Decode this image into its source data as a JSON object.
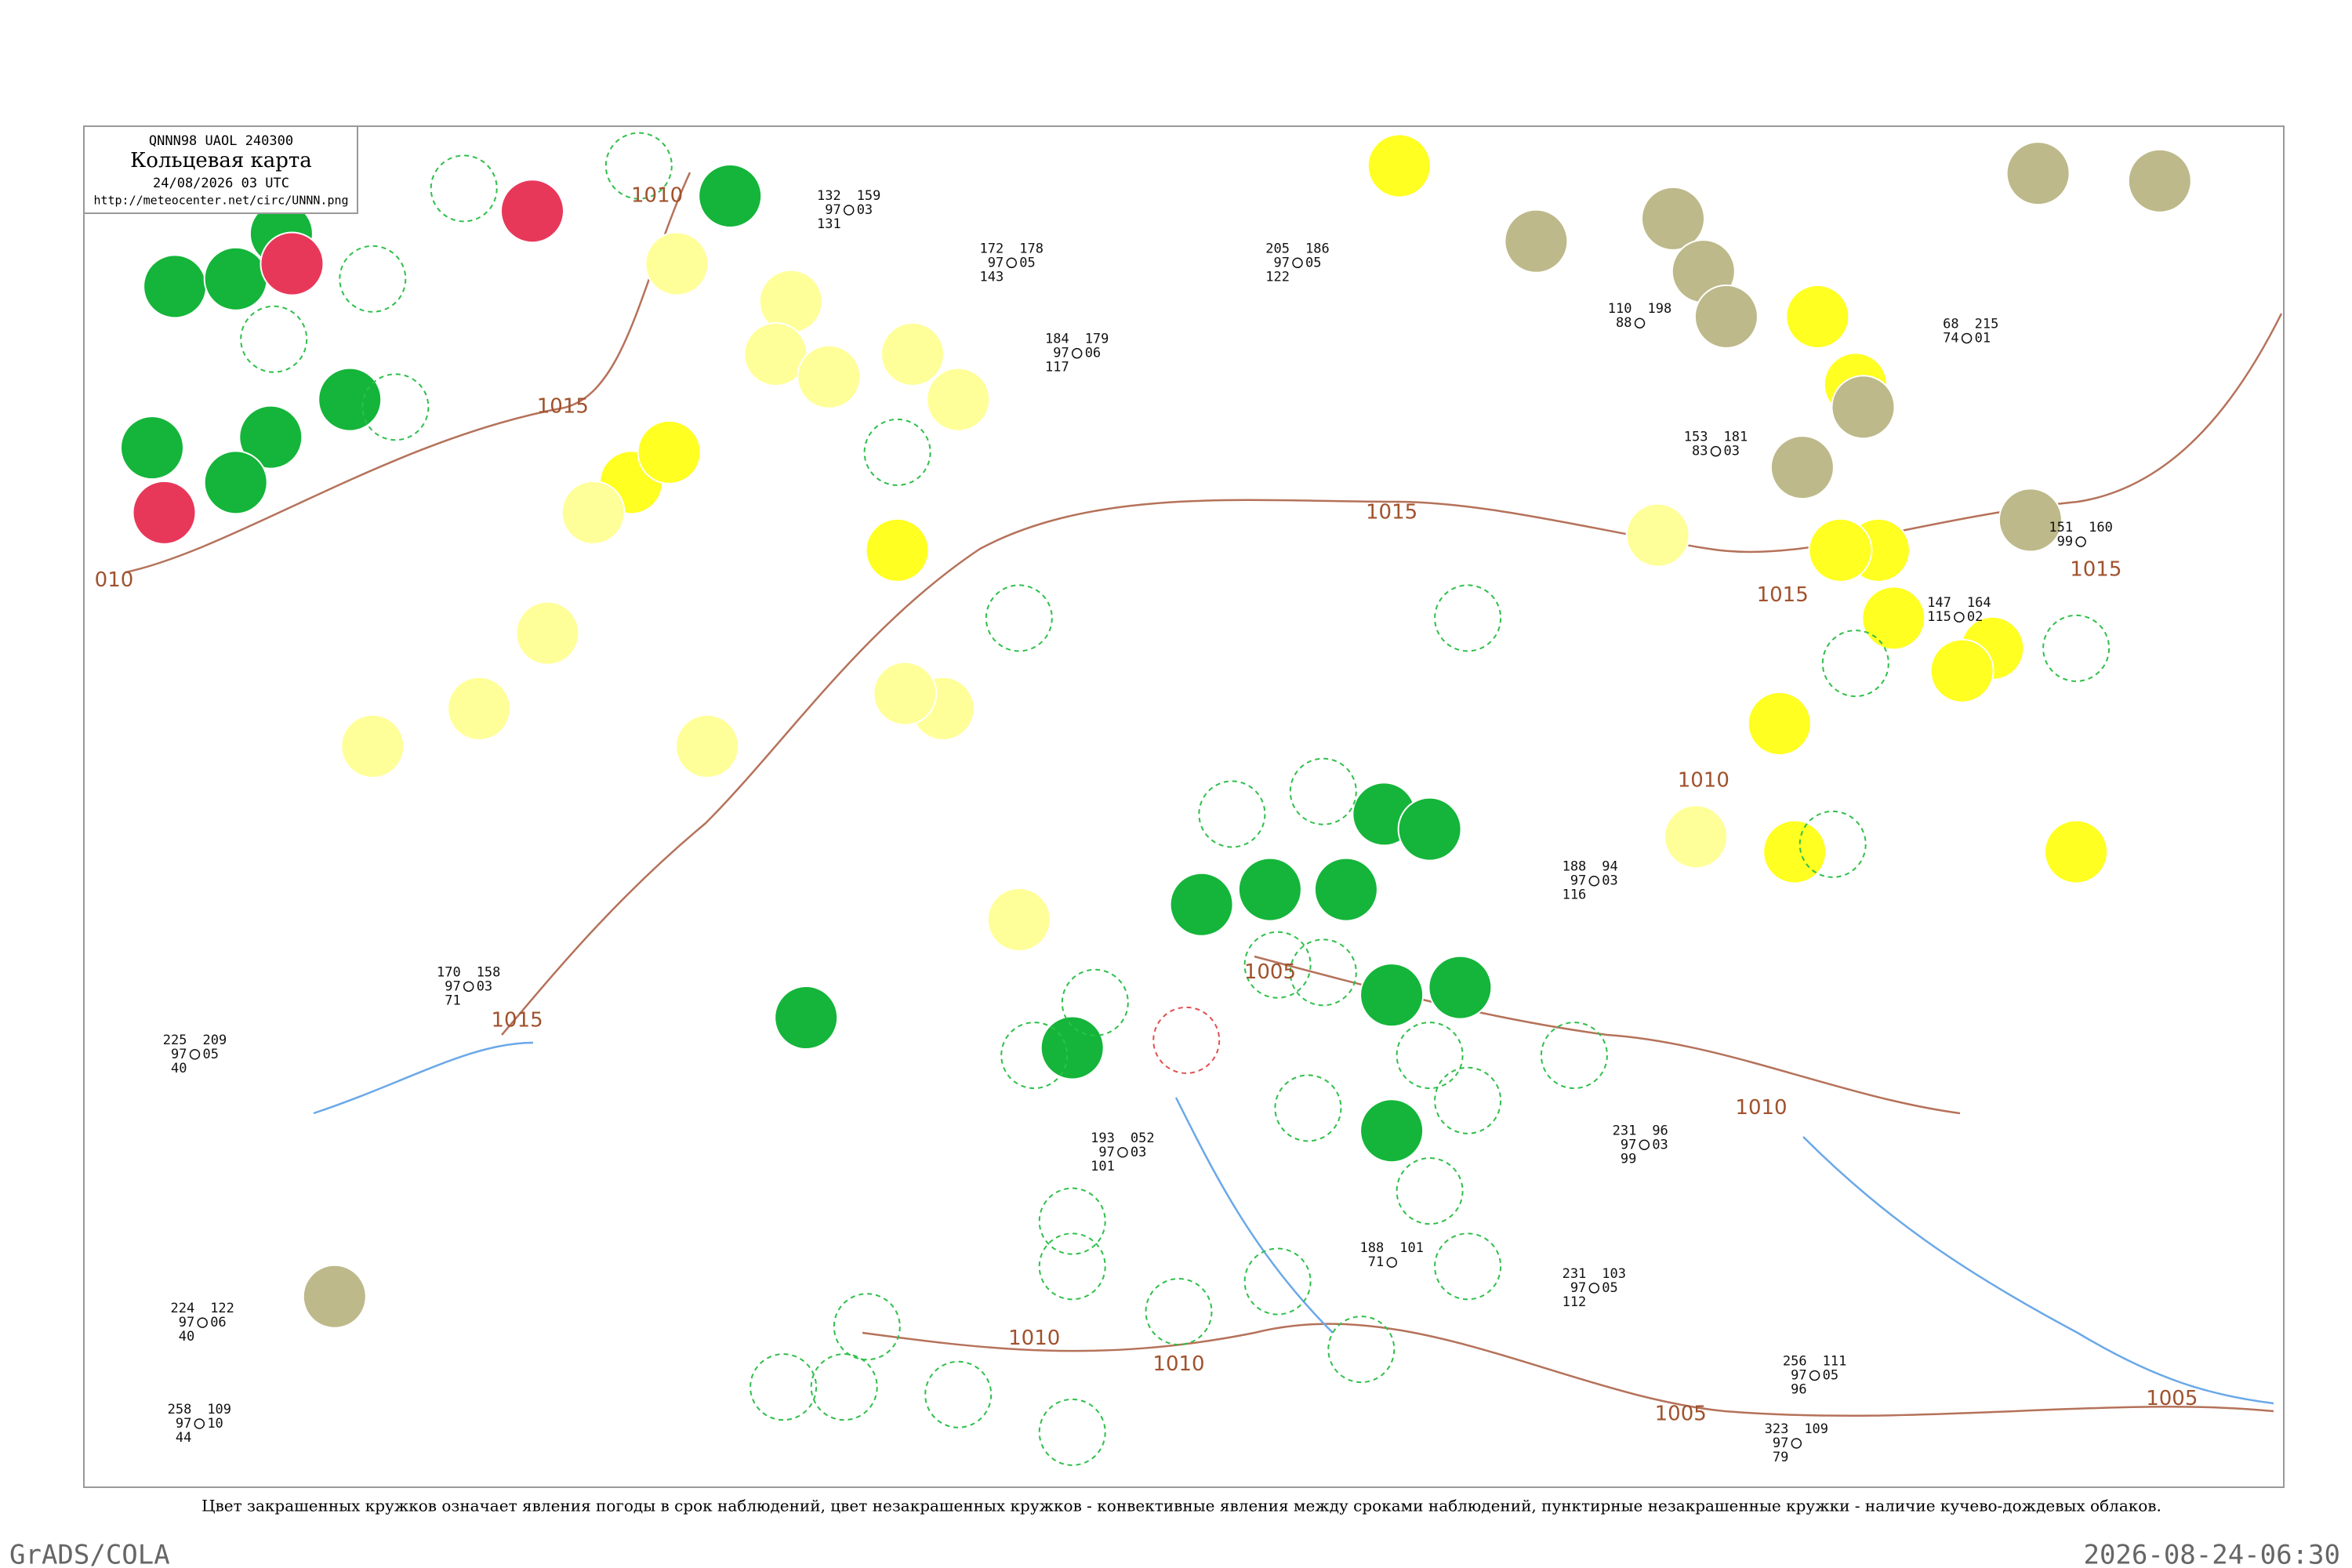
{
  "header": {
    "code": "QNNN98 UAOL 240300",
    "title": "Кольцевая карта",
    "date": "24/08/2026 03 UTC",
    "url": "http://meteocenter.net/circ/UNNN.png"
  },
  "isobars": [
    "010",
    "1015",
    "1010",
    "1015",
    "1005",
    "1010",
    "1010",
    "1015",
    "1010",
    "1015",
    "1015",
    "1010",
    "1005",
    "1005"
  ],
  "stations": [
    {
      "left": [
        "132",
        "97",
        "131"
      ],
      "right": [
        "159",
        "03"
      ]
    },
    {
      "left": [
        "172",
        "97",
        "143"
      ],
      "right": [
        "178",
        "05"
      ]
    },
    {
      "left": [
        "205",
        "97",
        "122"
      ],
      "right": [
        "186",
        "05"
      ]
    },
    {
      "left": [
        "110",
        "88"
      ],
      "right": [
        "198"
      ]
    },
    {
      "left": [
        "68",
        "74"
      ],
      "right": [
        "215",
        "01"
      ]
    },
    {
      "left": [
        "153",
        "83"
      ],
      "right": [
        "181",
        "03"
      ]
    },
    {
      "left": [
        "151",
        "99"
      ],
      "right": [
        "160"
      ]
    },
    {
      "left": [
        "147",
        "115"
      ],
      "right": [
        "164",
        "02"
      ]
    },
    {
      "left": [
        "188",
        "97",
        "116"
      ],
      "right": [
        "94",
        "03"
      ]
    },
    {
      "left": [
        "231",
        "97",
        "99"
      ],
      "right": [
        "96",
        "03"
      ]
    },
    {
      "left": [
        "231",
        "97",
        "112"
      ],
      "right": [
        "103",
        "05"
      ]
    },
    {
      "left": [
        "323",
        "97",
        "79"
      ],
      "right": [
        "109"
      ]
    },
    {
      "left": [
        "256",
        "97",
        "96"
      ],
      "right": [
        "111",
        "05"
      ]
    },
    {
      "left": [
        "258",
        "97",
        "44"
      ],
      "right": [
        "109",
        "10"
      ]
    },
    {
      "left": [
        "224",
        "97",
        "40"
      ],
      "right": [
        "122",
        "06"
      ]
    },
    {
      "left": [
        "193",
        "97",
        "101"
      ],
      "right": [
        "052",
        "03"
      ]
    },
    {
      "left": [
        "188",
        "71"
      ],
      "right": [
        "101"
      ]
    },
    {
      "left": [
        "170",
        "97",
        "71"
      ],
      "right": [
        "158",
        "03"
      ]
    },
    {
      "left": [
        "225",
        "97",
        "40"
      ],
      "right": [
        "209",
        "05"
      ]
    },
    {
      "left": [
        "184",
        "97",
        "117"
      ],
      "right": [
        "179",
        "06"
      ]
    }
  ],
  "footer": {
    "caption": "Цвет закрашенных кружков означает явления погоды в срок наблюдений, цвет незакрашенных кружков - конвективные явления между сроками наблюдений, пунктирные незакрашенные кружки - наличие кучево-дождевых облаков.",
    "software": "GrADS/COLA",
    "timestamp": "2026-08-24-06:30"
  }
}
